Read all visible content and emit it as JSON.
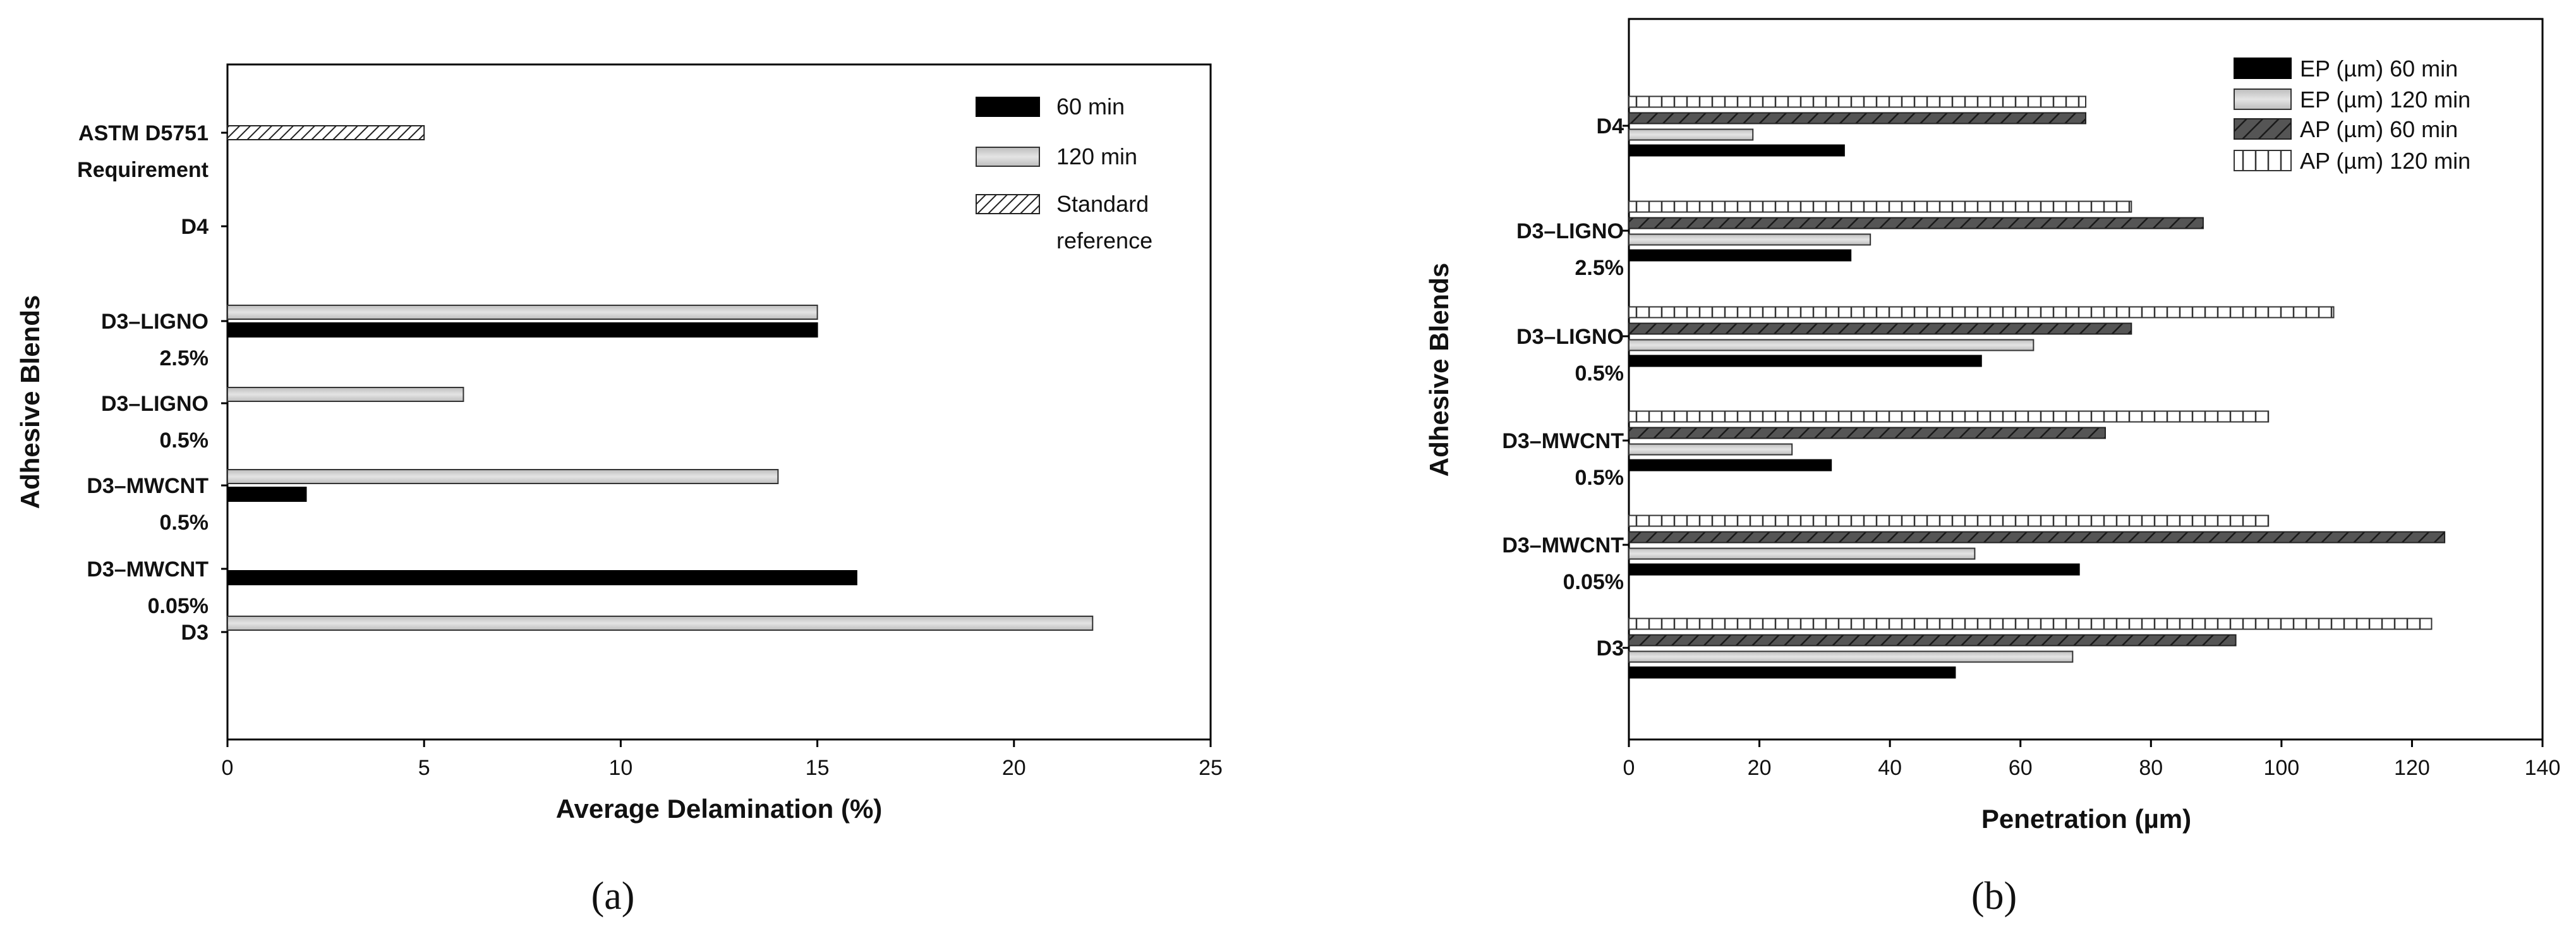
{
  "chart_data": [
    {
      "id": "a",
      "type": "bar",
      "orientation": "horizontal",
      "panel_label": "(a)",
      "xlabel": "Average Delamination (%)",
      "ylabel": "Adhesive Blends",
      "xlim": [
        0,
        25
      ],
      "xticks": [
        "0",
        "5",
        "10",
        "15",
        "20",
        "25"
      ],
      "categories": [
        [
          "ASTM D5751",
          "Requirement"
        ],
        [
          "D4"
        ],
        [
          "D3–LIGNO",
          "2.5%"
        ],
        [
          "D3–LIGNO",
          "0.5%"
        ],
        [
          "D3–MWCNT",
          "0.5%"
        ],
        [
          "D3–MWCNT",
          "0.05%"
        ],
        [
          "D3"
        ]
      ],
      "series": [
        {
          "name": "60 min",
          "style": "solid-black",
          "values": [
            null,
            0,
            15,
            0,
            2,
            16,
            0
          ]
        },
        {
          "name": "120 min",
          "style": "light-gray",
          "values": [
            null,
            0,
            15,
            6,
            14,
            0,
            22
          ]
        },
        {
          "name": "Standard reference",
          "legend_lines": [
            "Standard",
            "reference"
          ],
          "style": "diagonal-hatch",
          "values": [
            5,
            null,
            null,
            null,
            null,
            null,
            null
          ]
        }
      ],
      "legend_position": "top-right",
      "grid": false
    },
    {
      "id": "b",
      "type": "bar",
      "orientation": "horizontal",
      "panel_label": "(b)",
      "xlabel": "Penetration (µm)",
      "ylabel": "Adhesive Blends",
      "xlim": [
        0,
        140
      ],
      "xticks": [
        "0",
        "20",
        "40",
        "60",
        "80",
        "100",
        "120",
        "140"
      ],
      "categories": [
        [
          "D4"
        ],
        [
          "D3–LIGNO",
          "2.5%"
        ],
        [
          "D3–LIGNO",
          "0.5%"
        ],
        [
          "D3–MWCNT",
          "0.5%"
        ],
        [
          "D3–MWCNT",
          "0.05%"
        ],
        [
          "D3"
        ]
      ],
      "series": [
        {
          "name": "EP (µm) 60 min",
          "style": "solid-black",
          "values": [
            33,
            34,
            54,
            31,
            69,
            50
          ]
        },
        {
          "name": "EP (µm) 120 min",
          "style": "light-gray",
          "values": [
            19,
            37,
            62,
            25,
            53,
            68
          ]
        },
        {
          "name": "AP (µm) 60 min",
          "style": "dark-diagonal",
          "values": [
            70,
            88,
            77,
            73,
            125,
            93
          ]
        },
        {
          "name": "AP (µm) 120 min",
          "style": "white-brick",
          "values": [
            70,
            77,
            108,
            98,
            98,
            123
          ]
        }
      ],
      "legend_position": "top-right",
      "grid": false
    }
  ]
}
